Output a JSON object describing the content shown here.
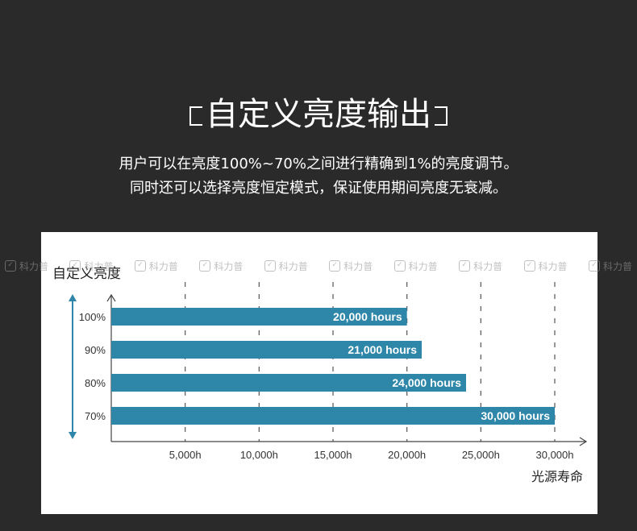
{
  "header": {
    "title": "自定义亮度输出",
    "line1": "用户可以在亮度100%~70%之间进行精确到1%的亮度调节。",
    "line2": "同时还可以选择亮度恒定模式，保证使用期间亮度无衰减。"
  },
  "watermark": {
    "text": "科力普",
    "icon": "leaf-logo-icon"
  },
  "colors": {
    "background": "#2a2a2a",
    "bar": "#2e86a8",
    "panel": "#ffffff"
  },
  "chart_data": {
    "type": "bar",
    "orientation": "horizontal",
    "title": "自定义亮度",
    "xlabel": "光源寿命",
    "categories": [
      "100%",
      "90%",
      "80%",
      "70%"
    ],
    "values": [
      20000,
      21000,
      24000,
      30000
    ],
    "bar_labels": [
      "20,000 hours",
      "21,000 hours",
      "24,000 hours",
      "30,000 hours"
    ],
    "xticks": [
      5000,
      10000,
      15000,
      20000,
      25000,
      30000
    ],
    "xtick_labels": [
      "5,000h",
      "10,000h",
      "15,000h",
      "20,000h",
      "25,000h",
      "30,000h"
    ],
    "xlim": [
      0,
      32000
    ],
    "grid": "vertical-dashed"
  }
}
